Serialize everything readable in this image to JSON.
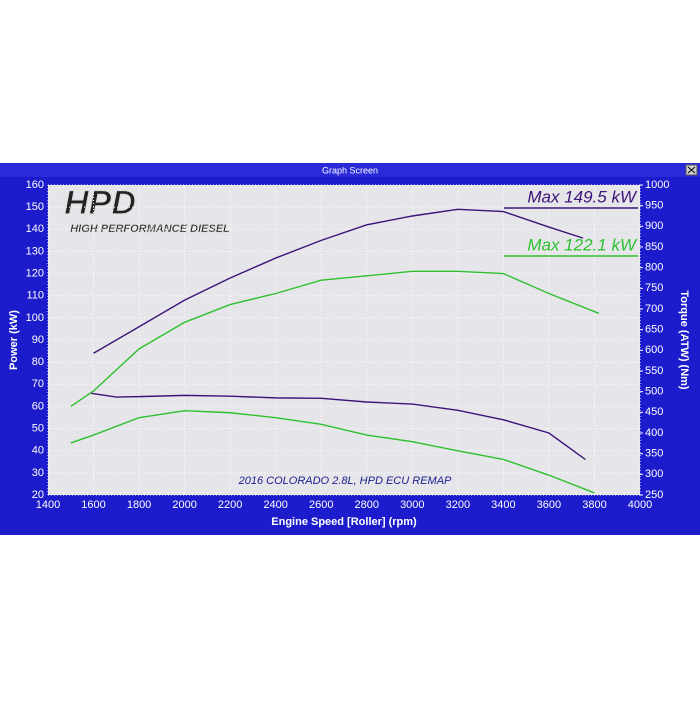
{
  "window_title": "Graph Screen",
  "logo": {
    "title": "HPD",
    "subtitle": "HIGH PERFORMANCE DIESEL"
  },
  "chart_data": {
    "type": "line",
    "annotation": "2016 COLORADO 2.8L, HPD ECU REMAP",
    "xlabel": "Engine Speed [Roller] (rpm)",
    "ylabel": "Power (kW)",
    "y2label": "Torque (ATW) (Nm)",
    "xlim": [
      1400,
      4000
    ],
    "xticks": [
      1400,
      1600,
      1800,
      2000,
      2200,
      2400,
      2600,
      2800,
      3000,
      3200,
      3400,
      3600,
      3800,
      4000
    ],
    "ylim": [
      20,
      160
    ],
    "yticks": [
      20,
      30,
      40,
      50,
      60,
      70,
      80,
      90,
      100,
      110,
      120,
      130,
      140,
      150,
      160
    ],
    "y2lim": [
      250,
      1000
    ],
    "y2ticks": [
      250,
      300,
      350,
      400,
      450,
      500,
      550,
      600,
      650,
      700,
      750,
      800,
      850,
      900,
      950,
      1000
    ],
    "grid": true,
    "series": [
      {
        "color": "#3c1478",
        "x": [
          1600,
          1650,
          1800,
          2000,
          2200,
          2400,
          2600,
          2800,
          3000,
          3200,
          3400,
          3600,
          3750
        ],
        "values": [
          84,
          87,
          96,
          108,
          118,
          127,
          135,
          142,
          146,
          149,
          148,
          141,
          136
        ]
      },
      {
        "color": "#2ec02e",
        "x": [
          1500,
          1600,
          1800,
          2000,
          2200,
          2400,
          2600,
          2800,
          3000,
          3200,
          3400,
          3600,
          3820
        ],
        "values": [
          60,
          67,
          86,
          98,
          106,
          111,
          117,
          119,
          121,
          121,
          120,
          111,
          102
        ]
      },
      {
        "color": "#3c1478",
        "axis": "y2",
        "x": [
          1590,
          1700,
          1800,
          2000,
          2200,
          2400,
          2600,
          2800,
          3000,
          3200,
          3400,
          3600,
          3760
        ],
        "values": [
          496,
          487,
          488,
          491,
          489,
          485,
          484,
          475,
          470,
          455,
          432,
          400,
          336
        ]
      },
      {
        "color": "#2ec02e",
        "axis": "y2",
        "x": [
          1500,
          1600,
          1800,
          2000,
          2200,
          2400,
          2600,
          2800,
          3000,
          3200,
          3400,
          3600,
          3800
        ],
        "values": [
          376,
          395,
          437,
          454,
          449,
          437,
          421,
          395,
          379,
          357,
          336,
          298,
          255
        ]
      }
    ],
    "annotations": [
      {
        "text": "Max 149.5 kW",
        "color": "#3c1478"
      },
      {
        "text": "Max 122.1 kW",
        "color": "#2ec02e"
      }
    ]
  }
}
